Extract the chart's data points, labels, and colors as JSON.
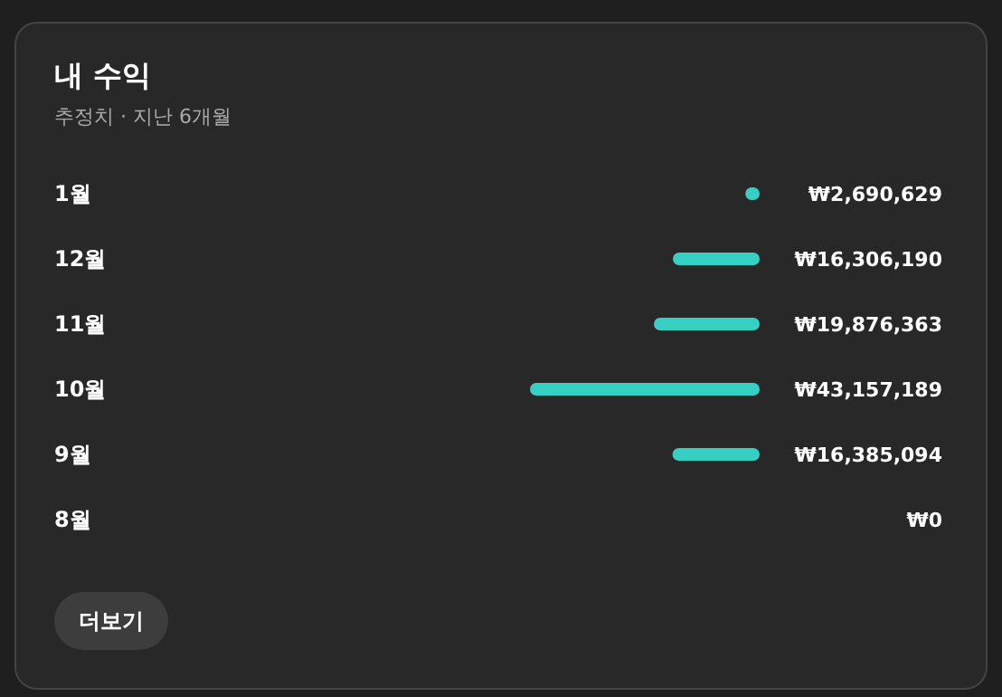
{
  "chart_data": {
    "type": "bar",
    "orientation": "horizontal",
    "title": "내 수익",
    "subtitle": "추정치 · 지난 6개월",
    "categories": [
      "1월",
      "12월",
      "11월",
      "10월",
      "9월",
      "8월"
    ],
    "values": [
      2690629,
      16306190,
      19876363,
      43157189,
      16385094,
      0
    ],
    "value_labels": [
      "₩2,690,629",
      "₩16,306,190",
      "₩19,876,363",
      "₩43,157,189",
      "₩16,385,094",
      "₩0"
    ],
    "color": "#37cfc3",
    "annotations": [
      "더보기"
    ]
  }
}
